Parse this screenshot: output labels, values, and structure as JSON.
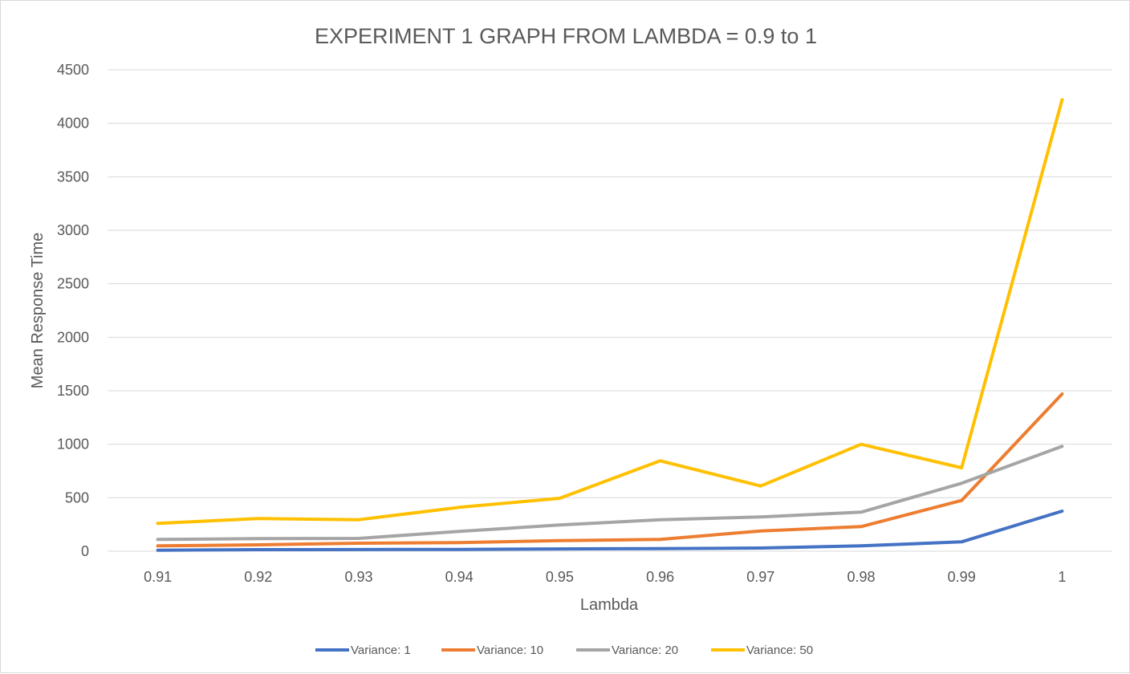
{
  "chart_data": {
    "type": "line",
    "title": "EXPERIMENT 1 GRAPH FROM LAMBDA = 0.9 to 1",
    "xlabel": "Lambda",
    "ylabel": "Mean Response Time",
    "categories": [
      "0.91",
      "0.92",
      "0.93",
      "0.94",
      "0.95",
      "0.96",
      "0.97",
      "0.98",
      "0.99",
      "1"
    ],
    "ylim": [
      0,
      4500
    ],
    "yticks": [
      "0",
      "500",
      "1000",
      "1500",
      "2000",
      "2500",
      "3000",
      "3500",
      "4000",
      "4500"
    ],
    "grid": true,
    "legend": "bottom",
    "series": [
      {
        "name": "Variance: 1",
        "color": "#4472c4",
        "values": [
          10,
          15,
          16,
          17,
          22,
          25,
          30,
          50,
          88,
          375
        ]
      },
      {
        "name": "Variance: 10",
        "color": "#ed7d31",
        "values": [
          50,
          60,
          75,
          80,
          100,
          110,
          190,
          230,
          475,
          1470
        ]
      },
      {
        "name": "Variance: 20",
        "color": "#a5a5a5",
        "values": [
          110,
          118,
          120,
          185,
          245,
          295,
          320,
          365,
          635,
          980
        ]
      },
      {
        "name": "Variance: 50",
        "color": "#ffc000",
        "values": [
          260,
          305,
          295,
          410,
          495,
          845,
          610,
          1000,
          780,
          4220
        ]
      }
    ]
  }
}
